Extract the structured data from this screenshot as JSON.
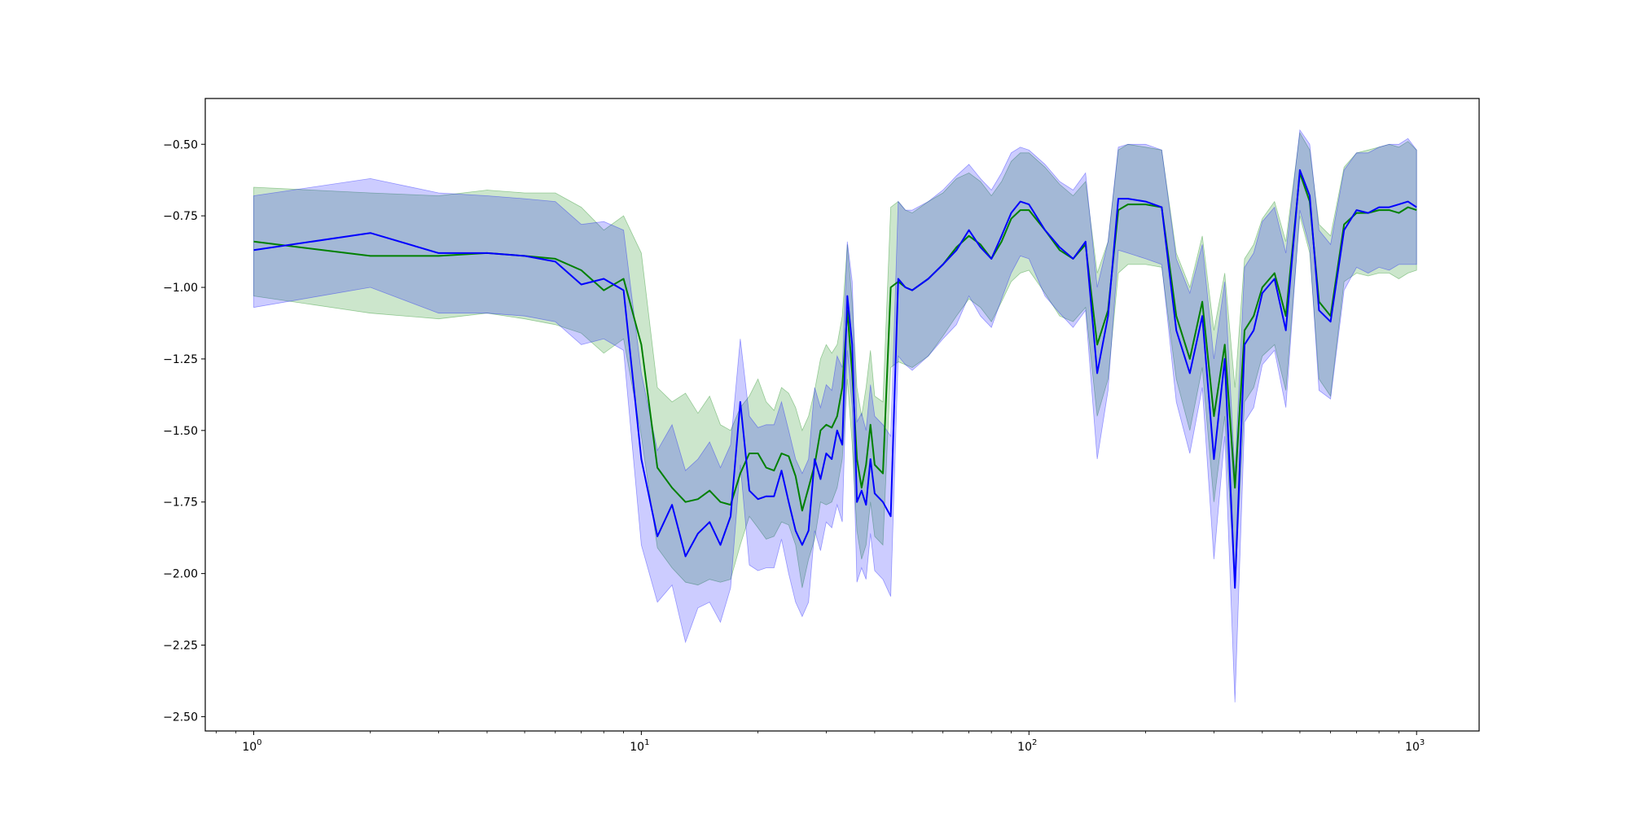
{
  "chart_data": {
    "type": "line",
    "title": "",
    "xlabel": "",
    "ylabel": "",
    "xscale": "log",
    "xlim": [
      0.75,
      1450
    ],
    "ylim": [
      -2.55,
      -0.34
    ],
    "grid": false,
    "legend": "none",
    "x_ticks": [
      {
        "base": "10",
        "exp": "0",
        "value": 1
      },
      {
        "base": "10",
        "exp": "1",
        "value": 10
      },
      {
        "base": "10",
        "exp": "2",
        "value": 100
      },
      {
        "base": "10",
        "exp": "3",
        "value": 1000
      }
    ],
    "y_ticks": [
      {
        "label": "−0.50",
        "value": -0.5
      },
      {
        "label": "−0.75",
        "value": -0.75
      },
      {
        "label": "−1.00",
        "value": -1.0
      },
      {
        "label": "−1.25",
        "value": -1.25
      },
      {
        "label": "−1.50",
        "value": -1.5
      },
      {
        "label": "−1.75",
        "value": -1.75
      },
      {
        "label": "−2.00",
        "value": -2.0
      },
      {
        "label": "−2.25",
        "value": -2.25
      },
      {
        "label": "−2.50",
        "value": -2.5
      }
    ],
    "series": [
      {
        "color": "#008000",
        "band_color": "#008000",
        "band_opacity": 0.2,
        "x": [
          1,
          2,
          3,
          4,
          5,
          6,
          7,
          8,
          9,
          10,
          11,
          12,
          13,
          14,
          15,
          16,
          17,
          18,
          19,
          20,
          21,
          22,
          23,
          24,
          25,
          26,
          27,
          28,
          29,
          30,
          31,
          32,
          33,
          34,
          35,
          36,
          37,
          38,
          39,
          40,
          42,
          44,
          46,
          48,
          50,
          55,
          60,
          65,
          70,
          75,
          80,
          85,
          90,
          95,
          100,
          110,
          120,
          130,
          140,
          150,
          160,
          170,
          180,
          200,
          220,
          240,
          260,
          280,
          300,
          320,
          340,
          360,
          380,
          400,
          430,
          460,
          500,
          530,
          560,
          600,
          650,
          700,
          750,
          800,
          850,
          900,
          950,
          1000
        ],
        "y": [
          -0.84,
          -0.89,
          -0.89,
          -0.88,
          -0.89,
          -0.9,
          -0.94,
          -1.01,
          -0.97,
          -1.2,
          -1.63,
          -1.7,
          -1.75,
          -1.74,
          -1.71,
          -1.75,
          -1.76,
          -1.65,
          -1.58,
          -1.58,
          -1.63,
          -1.64,
          -1.58,
          -1.59,
          -1.66,
          -1.78,
          -1.7,
          -1.62,
          -1.5,
          -1.48,
          -1.49,
          -1.45,
          -1.35,
          -1.08,
          -1.3,
          -1.6,
          -1.7,
          -1.62,
          -1.48,
          -1.62,
          -1.65,
          -1.0,
          -0.98,
          -1.0,
          -1.01,
          -0.97,
          -0.92,
          -0.86,
          -0.82,
          -0.85,
          -0.9,
          -0.84,
          -0.76,
          -0.73,
          -0.73,
          -0.8,
          -0.87,
          -0.9,
          -0.85,
          -1.2,
          -1.08,
          -0.73,
          -0.71,
          -0.71,
          -0.72,
          -1.1,
          -1.25,
          -1.05,
          -1.45,
          -1.2,
          -1.7,
          -1.15,
          -1.1,
          -1.0,
          -0.95,
          -1.1,
          -0.6,
          -0.7,
          -1.05,
          -1.1,
          -0.78,
          -0.74,
          -0.74,
          -0.73,
          -0.73,
          -0.74,
          -0.72,
          -0.73
        ],
        "upper": [
          -0.65,
          -0.67,
          -0.68,
          -0.66,
          -0.67,
          -0.67,
          -0.72,
          -0.8,
          -0.75,
          -0.88,
          -1.35,
          -1.4,
          -1.37,
          -1.44,
          -1.38,
          -1.48,
          -1.5,
          -1.42,
          -1.38,
          -1.32,
          -1.4,
          -1.43,
          -1.35,
          -1.37,
          -1.42,
          -1.5,
          -1.45,
          -1.36,
          -1.25,
          -1.2,
          -1.23,
          -1.2,
          -1.1,
          -0.85,
          -1.05,
          -1.35,
          -1.45,
          -1.35,
          -1.22,
          -1.38,
          -1.4,
          -0.72,
          -0.7,
          -0.73,
          -0.74,
          -0.7,
          -0.67,
          -0.62,
          -0.6,
          -0.63,
          -0.68,
          -0.63,
          -0.56,
          -0.53,
          -0.53,
          -0.58,
          -0.64,
          -0.68,
          -0.63,
          -0.95,
          -0.84,
          -0.52,
          -0.5,
          -0.51,
          -0.52,
          -0.88,
          -1.0,
          -0.82,
          -1.15,
          -0.95,
          -1.35,
          -0.9,
          -0.85,
          -0.76,
          -0.7,
          -0.84,
          -0.46,
          -0.52,
          -0.78,
          -0.82,
          -0.58,
          -0.53,
          -0.52,
          -0.51,
          -0.5,
          -0.51,
          -0.49,
          -0.52
        ],
        "lower": [
          -1.03,
          -1.09,
          -1.11,
          -1.09,
          -1.11,
          -1.13,
          -1.16,
          -1.23,
          -1.18,
          -1.52,
          -1.91,
          -1.98,
          -2.03,
          -2.04,
          -2.02,
          -2.03,
          -2.02,
          -1.9,
          -1.8,
          -1.84,
          -1.88,
          -1.87,
          -1.82,
          -1.83,
          -1.9,
          -2.05,
          -1.95,
          -1.88,
          -1.75,
          -1.76,
          -1.75,
          -1.7,
          -1.6,
          -1.32,
          -1.55,
          -1.85,
          -1.95,
          -1.9,
          -1.75,
          -1.87,
          -1.9,
          -1.28,
          -1.26,
          -1.27,
          -1.28,
          -1.24,
          -1.17,
          -1.1,
          -1.04,
          -1.07,
          -1.12,
          -1.05,
          -0.98,
          -0.95,
          -0.94,
          -1.02,
          -1.1,
          -1.12,
          -1.07,
          -1.45,
          -1.32,
          -0.95,
          -0.92,
          -0.92,
          -0.93,
          -1.32,
          -1.5,
          -1.28,
          -1.75,
          -1.45,
          -2.05,
          -1.4,
          -1.35,
          -1.24,
          -1.2,
          -1.36,
          -0.75,
          -0.88,
          -1.32,
          -1.38,
          -0.98,
          -0.95,
          -0.96,
          -0.95,
          -0.95,
          -0.97,
          -0.95,
          -0.94
        ]
      },
      {
        "color": "#0000ff",
        "band_color": "#0000ff",
        "band_opacity": 0.2,
        "x": [
          1,
          2,
          3,
          4,
          5,
          6,
          7,
          8,
          9,
          10,
          11,
          12,
          13,
          14,
          15,
          16,
          17,
          18,
          19,
          20,
          21,
          22,
          23,
          24,
          25,
          26,
          27,
          28,
          29,
          30,
          31,
          32,
          33,
          34,
          35,
          36,
          37,
          38,
          39,
          40,
          42,
          44,
          46,
          48,
          50,
          55,
          60,
          65,
          70,
          75,
          80,
          85,
          90,
          95,
          100,
          110,
          120,
          130,
          140,
          150,
          160,
          170,
          180,
          200,
          220,
          240,
          260,
          280,
          300,
          320,
          340,
          360,
          380,
          400,
          430,
          460,
          500,
          530,
          560,
          600,
          650,
          700,
          750,
          800,
          850,
          900,
          950,
          1000
        ],
        "y": [
          -0.87,
          -0.81,
          -0.88,
          -0.88,
          -0.89,
          -0.91,
          -0.99,
          -0.97,
          -1.01,
          -1.6,
          -1.87,
          -1.76,
          -1.94,
          -1.86,
          -1.82,
          -1.9,
          -1.8,
          -1.4,
          -1.71,
          -1.74,
          -1.73,
          -1.73,
          -1.64,
          -1.75,
          -1.85,
          -1.9,
          -1.85,
          -1.6,
          -1.67,
          -1.58,
          -1.6,
          -1.5,
          -1.55,
          -1.03,
          -1.2,
          -1.75,
          -1.71,
          -1.76,
          -1.6,
          -1.72,
          -1.75,
          -1.8,
          -0.97,
          -1.0,
          -1.01,
          -0.97,
          -0.92,
          -0.87,
          -0.8,
          -0.86,
          -0.9,
          -0.82,
          -0.74,
          -0.7,
          -0.71,
          -0.8,
          -0.86,
          -0.9,
          -0.84,
          -1.3,
          -1.1,
          -0.69,
          -0.69,
          -0.7,
          -0.72,
          -1.15,
          -1.3,
          -1.1,
          -1.6,
          -1.25,
          -2.05,
          -1.2,
          -1.15,
          -1.02,
          -0.97,
          -1.15,
          -0.59,
          -0.68,
          -1.08,
          -1.12,
          -0.8,
          -0.73,
          -0.74,
          -0.72,
          -0.72,
          -0.71,
          -0.7,
          -0.72
        ],
        "upper": [
          -0.68,
          -0.62,
          -0.67,
          -0.68,
          -0.69,
          -0.7,
          -0.78,
          -0.77,
          -0.8,
          -1.3,
          -1.57,
          -1.48,
          -1.64,
          -1.6,
          -1.54,
          -1.63,
          -1.55,
          -1.18,
          -1.45,
          -1.49,
          -1.48,
          -1.48,
          -1.4,
          -1.5,
          -1.6,
          -1.65,
          -1.6,
          -1.35,
          -1.42,
          -1.34,
          -1.36,
          -1.24,
          -1.28,
          -0.84,
          -0.98,
          -1.47,
          -1.44,
          -1.5,
          -1.34,
          -1.45,
          -1.48,
          -1.52,
          -0.7,
          -0.73,
          -0.73,
          -0.7,
          -0.66,
          -0.61,
          -0.57,
          -0.62,
          -0.66,
          -0.6,
          -0.53,
          -0.51,
          -0.52,
          -0.57,
          -0.63,
          -0.66,
          -0.6,
          -1.0,
          -0.84,
          -0.51,
          -0.5,
          -0.5,
          -0.52,
          -0.9,
          -1.02,
          -0.85,
          -1.25,
          -0.98,
          -1.65,
          -0.93,
          -0.88,
          -0.77,
          -0.72,
          -0.88,
          -0.45,
          -0.5,
          -0.8,
          -0.85,
          -0.59,
          -0.53,
          -0.53,
          -0.51,
          -0.5,
          -0.5,
          -0.48,
          -0.52
        ],
        "lower": [
          -1.07,
          -1.0,
          -1.09,
          -1.09,
          -1.1,
          -1.12,
          -1.2,
          -1.18,
          -1.22,
          -1.9,
          -2.1,
          -2.04,
          -2.24,
          -2.12,
          -2.1,
          -2.17,
          -2.05,
          -1.62,
          -1.97,
          -1.99,
          -1.98,
          -1.98,
          -1.88,
          -2.0,
          -2.1,
          -2.15,
          -2.1,
          -1.85,
          -1.92,
          -1.82,
          -1.84,
          -1.76,
          -1.82,
          -1.22,
          -1.42,
          -2.03,
          -1.98,
          -2.02,
          -1.86,
          -1.99,
          -2.02,
          -2.08,
          -1.24,
          -1.27,
          -1.29,
          -1.24,
          -1.18,
          -1.13,
          -1.03,
          -1.1,
          -1.14,
          -1.04,
          -0.95,
          -0.89,
          -0.9,
          -1.03,
          -1.09,
          -1.14,
          -1.08,
          -1.6,
          -1.36,
          -0.87,
          -0.88,
          -0.9,
          -0.92,
          -1.4,
          -1.58,
          -1.35,
          -1.95,
          -1.52,
          -2.45,
          -1.47,
          -1.42,
          -1.27,
          -1.22,
          -1.42,
          -0.73,
          -0.86,
          -1.36,
          -1.39,
          -1.01,
          -0.93,
          -0.95,
          -0.93,
          -0.94,
          -0.92,
          -0.92,
          -0.92
        ]
      }
    ]
  }
}
